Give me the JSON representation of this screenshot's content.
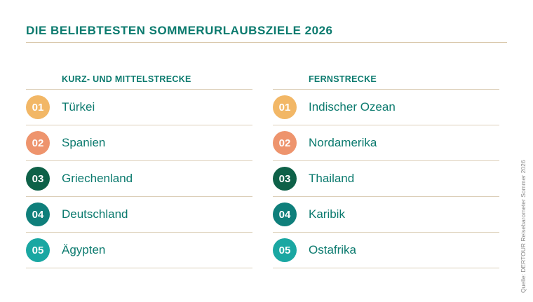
{
  "title": "DIE BELIEBTESTEN SOMMERURLAUBSZIELE 2026",
  "colors": {
    "heading": "#0b7a6e",
    "rank_1": "#f2b766",
    "rank_2": "#ee946d",
    "rank_3": "#0e6148",
    "rank_4": "#0f7f7b",
    "rank_5": "#1aa7a2",
    "divider": "#dccfb8"
  },
  "left": {
    "heading": "KURZ- UND MITTELSTRECKE",
    "items": [
      {
        "rank": "01",
        "name": "Türkei"
      },
      {
        "rank": "02",
        "name": "Spanien"
      },
      {
        "rank": "03",
        "name": "Griechenland"
      },
      {
        "rank": "04",
        "name": "Deutschland"
      },
      {
        "rank": "05",
        "name": "Ägypten"
      }
    ]
  },
  "right": {
    "heading": "FERNSTRECKE",
    "items": [
      {
        "rank": "01",
        "name": "Indischer Ozean"
      },
      {
        "rank": "02",
        "name": "Nordamerika"
      },
      {
        "rank": "03",
        "name": "Thailand"
      },
      {
        "rank": "04",
        "name": "Karibik"
      },
      {
        "rank": "05",
        "name": "Ostafrika"
      }
    ]
  },
  "source": "Quelle: DERTOUR Reisebarometer Sommer 2026"
}
